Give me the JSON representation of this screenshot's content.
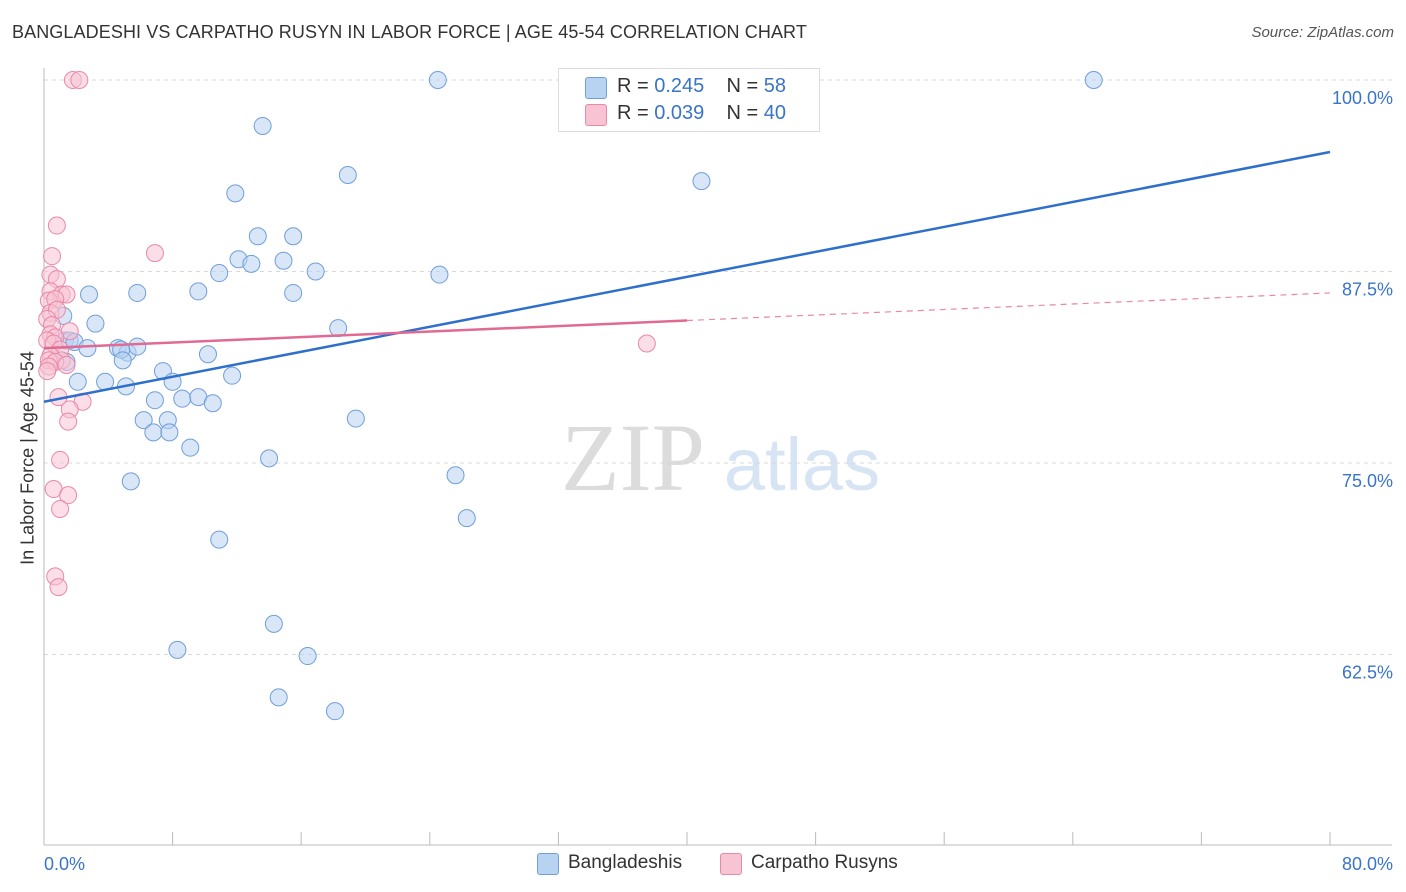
{
  "title": "BANGLADESHI VS CARPATHO RUSYN IN LABOR FORCE | AGE 45-54 CORRELATION CHART",
  "source": "Source: ZipAtlas.com",
  "watermark": {
    "part1": "ZIP",
    "part2": "atlas"
  },
  "legend": {
    "rows": [
      {
        "r_label": "R = ",
        "r_value": "0.245",
        "n_label": "N = ",
        "n_value": "58"
      },
      {
        "r_label": "R = ",
        "r_value": "0.039",
        "n_label": "N = ",
        "n_value": "40"
      }
    ]
  },
  "bottom_legend": [
    "Bangladeshis",
    "Carpatho Rusyns"
  ],
  "chart_data": {
    "type": "scatter",
    "title": "BANGLADESHI VS CARPATHO RUSYN IN LABOR FORCE | AGE 45-54 CORRELATION CHART",
    "xlabel": "",
    "ylabel": "In Labor Force | Age 45-54",
    "xlim": [
      0,
      80
    ],
    "ylim": [
      50,
      100
    ],
    "x_tick_labels": [
      "0.0%",
      "80.0%"
    ],
    "y_ticks": [
      62.5,
      75.0,
      87.5,
      100.0
    ],
    "y_tick_labels": [
      "62.5%",
      "75.0%",
      "87.5%",
      "100.0%"
    ],
    "grid": true,
    "legend_position": "top-center",
    "colors": {
      "bangladeshis_fill": "#b8d2f2",
      "bangladeshis_stroke": "#6f9fd8",
      "bangladeshis_line": "#2f6fcc",
      "carpatho_fill": "#f8c3d3",
      "carpatho_stroke": "#e889a8",
      "carpatho_line": "#e06a93",
      "tick_label": "#3a74c8"
    },
    "series": [
      {
        "name": "Bangladeshis",
        "r": 0.245,
        "n": 58,
        "trend": {
          "x": [
            0.0,
            80.0
          ],
          "y": [
            79.0,
            95.3
          ]
        },
        "points": [
          [
            24.5,
            100.0
          ],
          [
            65.3,
            100.0
          ],
          [
            13.6,
            97.0
          ],
          [
            18.9,
            93.8
          ],
          [
            40.9,
            93.4
          ],
          [
            11.9,
            92.6
          ],
          [
            13.3,
            89.8
          ],
          [
            15.5,
            89.8
          ],
          [
            12.1,
            88.3
          ],
          [
            12.9,
            88.0
          ],
          [
            14.9,
            88.2
          ],
          [
            10.9,
            87.4
          ],
          [
            16.9,
            87.5
          ],
          [
            24.6,
            87.3
          ],
          [
            2.8,
            86.0
          ],
          [
            5.8,
            86.1
          ],
          [
            9.6,
            86.2
          ],
          [
            15.5,
            86.1
          ],
          [
            1.2,
            84.6
          ],
          [
            3.2,
            84.1
          ],
          [
            18.3,
            83.8
          ],
          [
            1.3,
            83.0
          ],
          [
            1.6,
            83.0
          ],
          [
            1.9,
            82.9
          ],
          [
            2.7,
            82.5
          ],
          [
            4.6,
            82.5
          ],
          [
            5.2,
            82.2
          ],
          [
            5.8,
            82.6
          ],
          [
            4.8,
            82.4
          ],
          [
            10.2,
            82.1
          ],
          [
            1.4,
            81.6
          ],
          [
            4.9,
            81.7
          ],
          [
            7.4,
            81.0
          ],
          [
            11.7,
            80.7
          ],
          [
            2.1,
            80.3
          ],
          [
            3.8,
            80.3
          ],
          [
            5.1,
            80.0
          ],
          [
            8.0,
            80.3
          ],
          [
            6.9,
            79.1
          ],
          [
            8.6,
            79.2
          ],
          [
            9.6,
            79.3
          ],
          [
            10.5,
            78.9
          ],
          [
            6.2,
            77.8
          ],
          [
            6.8,
            77.0
          ],
          [
            7.7,
            77.8
          ],
          [
            7.8,
            77.0
          ],
          [
            19.4,
            77.9
          ],
          [
            9.1,
            76.0
          ],
          [
            14.0,
            75.3
          ],
          [
            5.4,
            73.8
          ],
          [
            25.6,
            74.2
          ],
          [
            26.3,
            71.4
          ],
          [
            10.9,
            70.0
          ],
          [
            14.3,
            64.5
          ],
          [
            8.3,
            62.8
          ],
          [
            16.4,
            62.4
          ],
          [
            14.6,
            59.7
          ],
          [
            18.1,
            58.8
          ]
        ]
      },
      {
        "name": "Carpatho Rusyns",
        "r": 0.039,
        "n": 40,
        "trend": {
          "x": [
            0.0,
            40.0
          ],
          "y": [
            82.5,
            84.3
          ]
        },
        "trend_dashed": {
          "x": [
            40.0,
            80.0
          ],
          "y": [
            84.3,
            86.1
          ]
        },
        "points": [
          [
            1.8,
            100.0
          ],
          [
            2.2,
            100.0
          ],
          [
            0.8,
            90.5
          ],
          [
            6.9,
            88.7
          ],
          [
            0.5,
            88.5
          ],
          [
            0.4,
            87.3
          ],
          [
            0.8,
            87.0
          ],
          [
            0.4,
            86.2
          ],
          [
            1.1,
            86.0
          ],
          [
            1.4,
            86.0
          ],
          [
            0.3,
            85.6
          ],
          [
            0.7,
            85.7
          ],
          [
            0.4,
            84.8
          ],
          [
            0.8,
            85.0
          ],
          [
            0.2,
            84.4
          ],
          [
            0.5,
            84.0
          ],
          [
            1.6,
            83.6
          ],
          [
            0.4,
            83.4
          ],
          [
            0.7,
            83.2
          ],
          [
            0.2,
            83.0
          ],
          [
            0.6,
            82.8
          ],
          [
            1.0,
            82.4
          ],
          [
            0.4,
            82.0
          ],
          [
            1.1,
            81.7
          ],
          [
            0.3,
            81.7
          ],
          [
            0.7,
            81.6
          ],
          [
            1.4,
            81.4
          ],
          [
            0.3,
            81.3
          ],
          [
            0.2,
            81.0
          ],
          [
            37.5,
            82.8
          ],
          [
            0.9,
            79.3
          ],
          [
            2.4,
            79.0
          ],
          [
            1.6,
            78.5
          ],
          [
            1.5,
            77.7
          ],
          [
            1.0,
            75.2
          ],
          [
            0.6,
            73.3
          ],
          [
            1.5,
            72.9
          ],
          [
            1.0,
            72.0
          ],
          [
            0.7,
            67.6
          ],
          [
            0.9,
            66.9
          ]
        ]
      }
    ]
  }
}
